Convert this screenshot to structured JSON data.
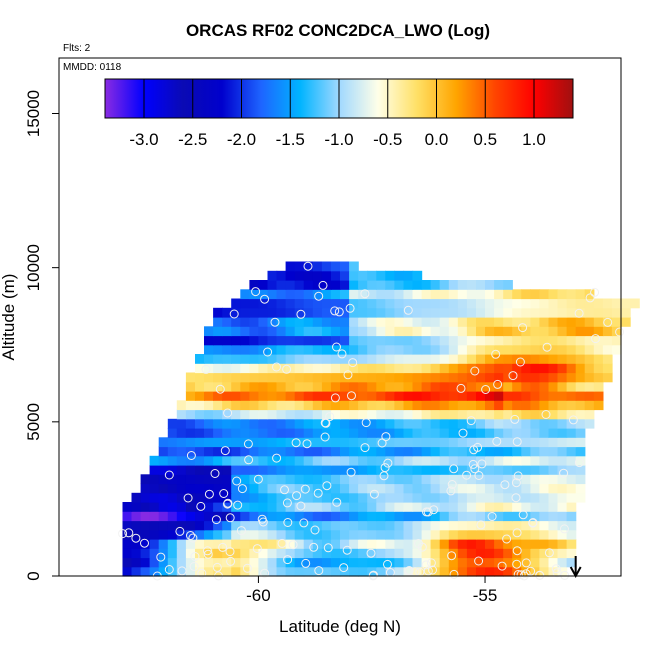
{
  "chart_data": {
    "type": "heatmap",
    "title": "ORCAS RF02 CONC2DCA_LWO (Log)",
    "flights_label": "Flts: 2",
    "date_label": "MMDD: 0118",
    "xlabel": "Latitude (deg N)",
    "ylabel": "Altitude (m)",
    "xlim": [
      -64.4,
      -52.0
    ],
    "ylim": [
      0,
      16800
    ],
    "x_ticks": [
      -60,
      -55
    ],
    "y_ticks": [
      0,
      5000,
      10000,
      15000
    ],
    "colorbar": {
      "range": [
        -3.4,
        1.4
      ],
      "ticks": [
        -3.0,
        -2.5,
        -2.0,
        -1.5,
        -1.0,
        -0.5,
        0.0,
        0.5,
        1.0
      ],
      "tick_labels": [
        "-3.0",
        "-2.5",
        "-2.0",
        "-1.5",
        "-1.0",
        "-0.5",
        "0.0",
        "0.5",
        "1.0"
      ],
      "colors": [
        "#8a2be2",
        "#0000ff",
        "#0a0ab4",
        "#0000cd",
        "#1e64ff",
        "#00b4ff",
        "#a0d8ff",
        "#ffffe8",
        "#ffe066",
        "#ffa500",
        "#ff4500",
        "#ff0000",
        "#a01010"
      ]
    },
    "arrow_marker_latitude": -53.0,
    "grid_cell": {
      "dlat": 0.2,
      "dalt": 300
    },
    "coverage": {
      "lat_south": -63.0,
      "lat_north_at_alt": [
        [
          0,
          -53.2
        ],
        [
          4500,
          -52.8
        ],
        [
          9500,
          -51.6
        ]
      ],
      "alt_top_at_lat": [
        [
          -63.0,
          2200
        ],
        [
          -62.0,
          4800
        ],
        [
          -61.0,
          8600
        ],
        [
          -60.0,
          9800
        ],
        [
          -59.0,
          10500
        ],
        [
          -57.0,
          10000
        ],
        [
          -55.0,
          9700
        ],
        [
          -53.0,
          9400
        ],
        [
          -52.0,
          9200
        ]
      ]
    },
    "value_features": [
      {
        "name": "warm_layer_6km",
        "center_alt": 6100,
        "thickness": 700,
        "value": 0.3
      },
      {
        "name": "plume_peak",
        "lat": -54.0,
        "alt": 6600,
        "value": 0.9
      },
      {
        "name": "low_level_max",
        "lat": -55.0,
        "alt": 450,
        "value": 1.0
      },
      {
        "name": "low_level_secondary",
        "lat": -61.0,
        "alt": 700,
        "value": 0.5
      },
      {
        "name": "upper_north_moist",
        "lat": -53.0,
        "alt": 8500,
        "value": -0.3
      },
      {
        "name": "lower_southwest_dry",
        "lat": -62.0,
        "alt": 2000,
        "value": -3.1
      }
    ],
    "observations_count": 210
  }
}
